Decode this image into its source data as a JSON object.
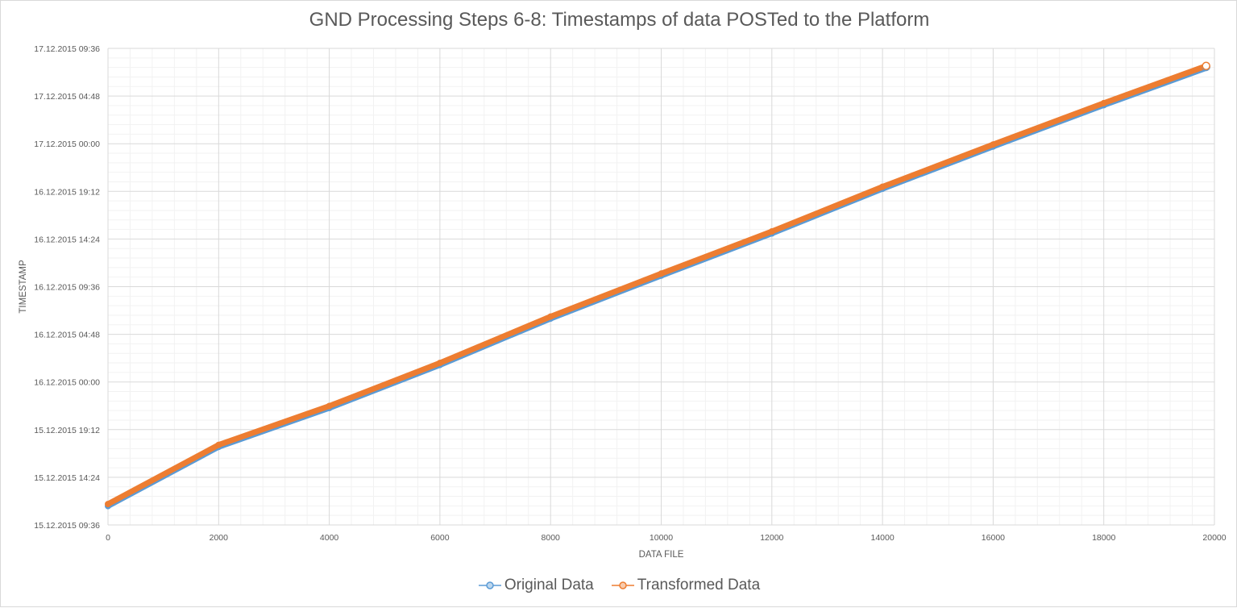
{
  "chart_data": {
    "type": "line",
    "title": "GND Processing Steps 6-8: Timestamps of data POSTed to the Platform",
    "xlabel": "DATA FILE",
    "ylabel": "TIMESTAMP",
    "xlim": [
      0,
      20000
    ],
    "x_ticks": [
      "0",
      "2000",
      "4000",
      "6000",
      "8000",
      "10000",
      "12000",
      "14000",
      "16000",
      "18000",
      "20000"
    ],
    "y_ticks": [
      "15.12.2015 09:36",
      "15.12.2015 14:24",
      "15.12.2015 19:12",
      "16.12.2015 00:00",
      "16.12.2015 04:48",
      "16.12.2015 09:36",
      "16.12.2015 14:24",
      "16.12.2015 19:12",
      "17.12.2015 00:00",
      "17.12.2015 04:48",
      "17.12.2015 09:36"
    ],
    "ylim": [
      "15.12.2015 09:36",
      "17.12.2015 09:36"
    ],
    "grid": true,
    "legend_position": "bottom",
    "series": [
      {
        "name": "Original Data",
        "color": "#5b9bd5",
        "x": [
          0,
          2000,
          4000,
          6000,
          8000,
          10000,
          12000,
          14000,
          16000,
          18000,
          19850
        ],
        "y": [
          "15.12.2015 11:42",
          "15.12.2015 17:40",
          "15.12.2015 21:35",
          "16.12.2015 01:55",
          "16.12.2015 06:35",
          "16.12.2015 10:55",
          "16.12.2015 15:10",
          "16.12.2015 19:40",
          "16.12.2015 23:55",
          "17.12.2015 04:05",
          "17.12.2015 07:50"
        ]
      },
      {
        "name": "Transformed Data",
        "color": "#ed7d31",
        "x": [
          0,
          2000,
          4000,
          6000,
          8000,
          10000,
          12000,
          14000,
          16000,
          18000,
          19850
        ],
        "y": [
          "15.12.2015 11:42",
          "15.12.2015 17:40",
          "15.12.2015 21:35",
          "16.12.2015 01:55",
          "16.12.2015 06:35",
          "16.12.2015 10:55",
          "16.12.2015 15:10",
          "16.12.2015 19:40",
          "16.12.2015 23:55",
          "17.12.2015 04:05",
          "17.12.2015 07:50"
        ]
      }
    ]
  }
}
